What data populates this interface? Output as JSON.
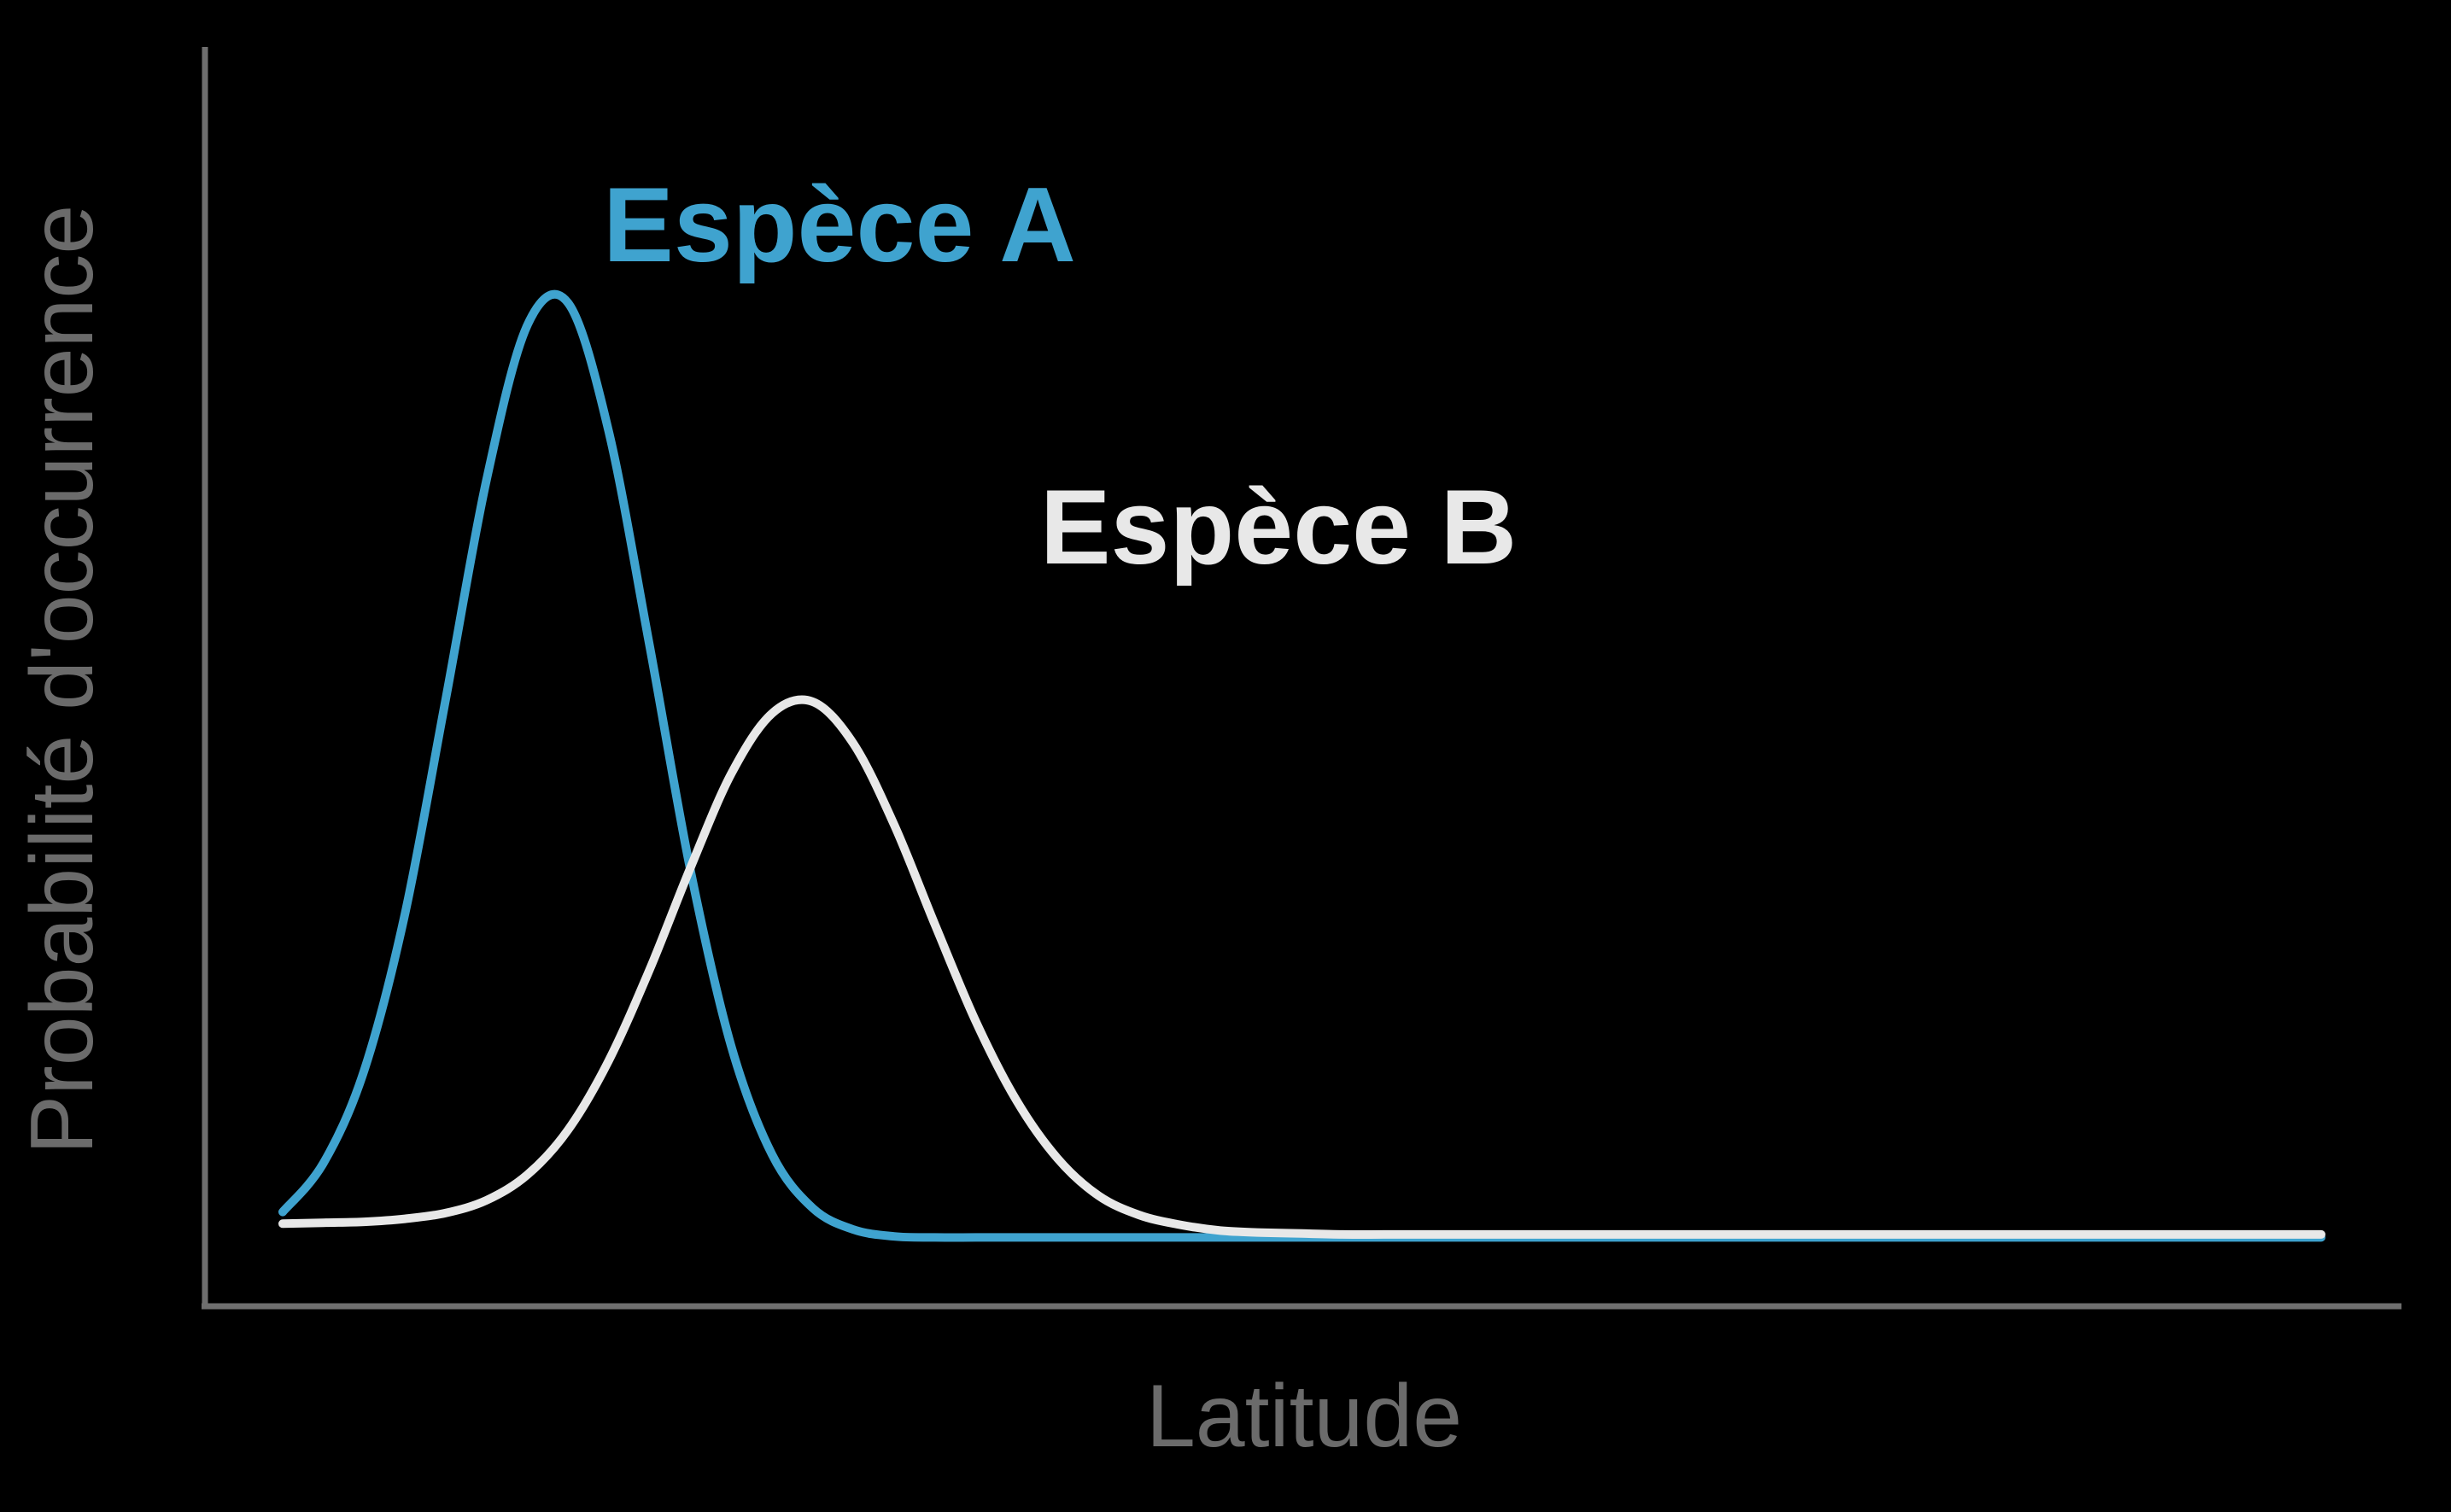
{
  "chart_data": {
    "type": "line",
    "xlabel": "Latitude",
    "ylabel": "Probabilité d'occurrence",
    "xlim": [
      0,
      1
    ],
    "ylim": [
      0,
      1
    ],
    "grid": false,
    "axis_ticks": false,
    "x": [
      0.0,
      0.02,
      0.04,
      0.06,
      0.08,
      0.1,
      0.12,
      0.14,
      0.16,
      0.18,
      0.2,
      0.22,
      0.24,
      0.26,
      0.28,
      0.3,
      0.32,
      0.34,
      0.36,
      0.38,
      0.4,
      0.42,
      0.44,
      0.46,
      0.48,
      0.5,
      0.52,
      0.54,
      0.56,
      0.58,
      0.6,
      0.62,
      0.64,
      0.66,
      0.68,
      0.7,
      0.72,
      0.74,
      0.76,
      0.78,
      0.8,
      0.82,
      0.84,
      0.86,
      0.88,
      0.9,
      0.92,
      0.94,
      0.96,
      0.98,
      1.0
    ],
    "series": [
      {
        "name": "Espèce A",
        "color": "#3fa3cf",
        "values": [
          0.051,
          0.101,
          0.196,
          0.356,
          0.576,
          0.8,
          0.958,
          0.981,
          0.849,
          0.63,
          0.401,
          0.221,
          0.11,
          0.055,
          0.033,
          0.026,
          0.025,
          0.025,
          0.025,
          0.025,
          0.025,
          0.025,
          0.025,
          0.025,
          0.025,
          0.025,
          0.025,
          0.025,
          0.025,
          0.025,
          0.025,
          0.025,
          0.025,
          0.025,
          0.025,
          0.025,
          0.025,
          0.025,
          0.025,
          0.025,
          0.025,
          0.025,
          0.025,
          0.025,
          0.025,
          0.025,
          0.025,
          0.025,
          0.025,
          0.025,
          0.025
        ]
      },
      {
        "name": "Espèce B",
        "color": "#e8e8e8",
        "values": [
          0.039,
          0.04,
          0.041,
          0.044,
          0.05,
          0.063,
          0.089,
          0.135,
          0.206,
          0.299,
          0.403,
          0.499,
          0.561,
          0.573,
          0.53,
          0.447,
          0.345,
          0.246,
          0.165,
          0.106,
          0.068,
          0.048,
          0.038,
          0.032,
          0.03,
          0.029,
          0.028,
          0.028,
          0.028,
          0.028,
          0.028,
          0.028,
          0.028,
          0.028,
          0.028,
          0.028,
          0.028,
          0.028,
          0.028,
          0.028,
          0.028,
          0.028,
          0.028,
          0.028,
          0.028,
          0.028,
          0.028,
          0.028,
          0.028,
          0.028,
          0.028
        ]
      }
    ]
  }
}
